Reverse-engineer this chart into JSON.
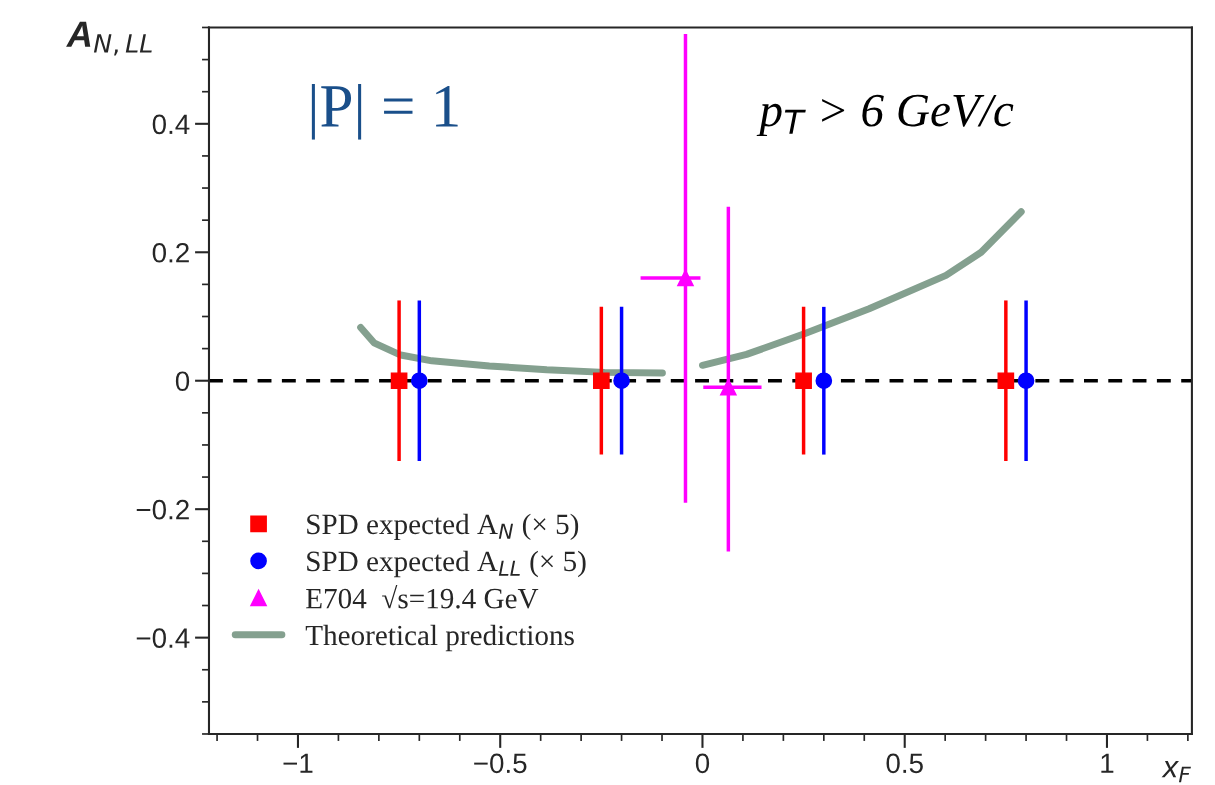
{
  "chart_data": {
    "type": "scatter",
    "xlabel": "x$_{F}$",
    "ylabel": "A$_{N,LL}$",
    "xlim": [
      -1.22,
      1.21
    ],
    "ylim": [
      -0.55,
      0.55
    ],
    "xticks": [
      {
        "value": -1,
        "label": "−1"
      },
      {
        "value": -0.5,
        "label": "−0.5"
      },
      0,
      0.5,
      1
    ],
    "yticks": [
      {
        "value": -0.4,
        "label": "−0.4"
      },
      {
        "value": -0.2,
        "label": "−0.2"
      },
      0,
      0.2,
      0.4
    ],
    "grid": false,
    "legend": "bottom left",
    "series": [
      {
        "name": "SPD expected A$_{N}$ (× 5)",
        "marker": "square",
        "color": "#ff0000",
        "x": [
          -0.75,
          -0.25,
          0.25,
          0.75
        ],
        "values": [
          0,
          0,
          0,
          0
        ],
        "errors": [
          0.125,
          0.115,
          0.115,
          0.125
        ]
      },
      {
        "name": "SPD expected A$_{LL}$ (× 5)",
        "marker": "circle",
        "color": "#0000ff",
        "x": [
          -0.7,
          -0.2,
          0.3,
          0.8
        ],
        "values": [
          0,
          0,
          0,
          0
        ],
        "errors": [
          0.125,
          0.115,
          0.115,
          0.125
        ]
      },
      {
        "name": "E704  √s=19.4 GeV",
        "marker": "triangle",
        "color": "#ff00ff",
        "x": [
          -0.042,
          0.064
        ],
        "values": [
          0.16,
          -0.01
        ],
        "errors": [
          [
            -0.19,
            0.54
          ],
          [
            -0.266,
            0.271
          ]
        ],
        "xerrors": [
          [
            -0.153,
            -0.005
          ],
          [
            0.002,
            0.146
          ]
        ]
      },
      {
        "name": "Theoretical predictions",
        "type": "line",
        "marker": "none",
        "color": "#84a08f",
        "x": [
          -0.845,
          -0.812,
          -0.746,
          -0.669,
          -0.527,
          -0.385,
          -0.242,
          -0.099
        ],
        "values": [
          0.083,
          0.059,
          0.04,
          0.031,
          0.023,
          0.017,
          0.013,
          0.012
        ]
      },
      {
        "type": "line",
        "marker": "none",
        "color": "#84a08f",
        "x": [
          0.0,
          0.109,
          0.252,
          0.412,
          0.602,
          0.689,
          0.788
        ],
        "values": [
          0.024,
          0.041,
          0.073,
          0.112,
          0.164,
          0.2,
          0.263
        ]
      }
    ],
    "ref_lines": [
      {
        "axis": "y",
        "value": 0,
        "color": "#000000",
        "line_style": "dashed"
      }
    ],
    "annotations": [
      "|P| = 1",
      "p$_{T}$ > 6 GeV/c"
    ]
  }
}
